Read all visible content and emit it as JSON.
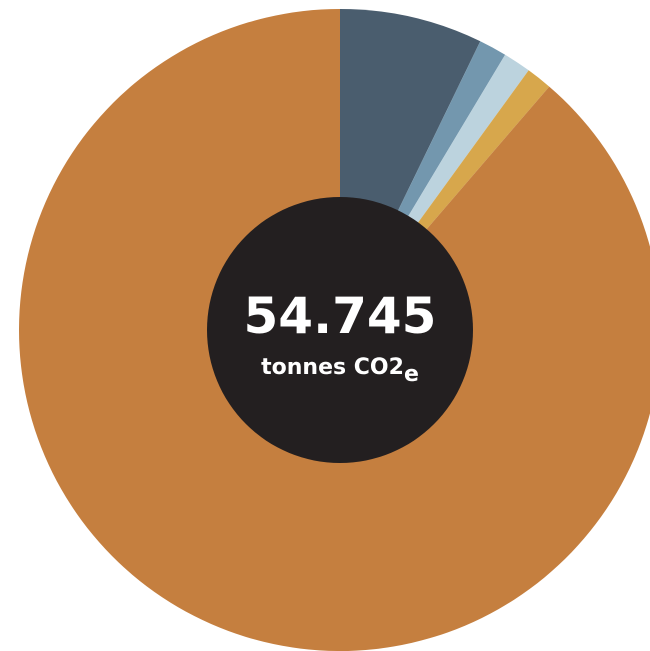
{
  "chart_data": {
    "type": "pie",
    "style": "donut",
    "start_angle": "12 o'clock, clockwise",
    "slices": [
      {
        "value": 7.2,
        "color": "#4a5d6e"
      },
      {
        "value": 1.4,
        "color": "#7397ae"
      },
      {
        "value": 1.4,
        "color": "#bcd3de"
      },
      {
        "value": 1.3,
        "color": "#d7a74c"
      },
      {
        "value": 88.7,
        "color": "#c57f3f"
      }
    ],
    "center": {
      "value": "54.745",
      "unit_main": "tonnes CO2",
      "unit_sub": "e",
      "background": "#231f20",
      "text_color": "#ffffff"
    }
  }
}
